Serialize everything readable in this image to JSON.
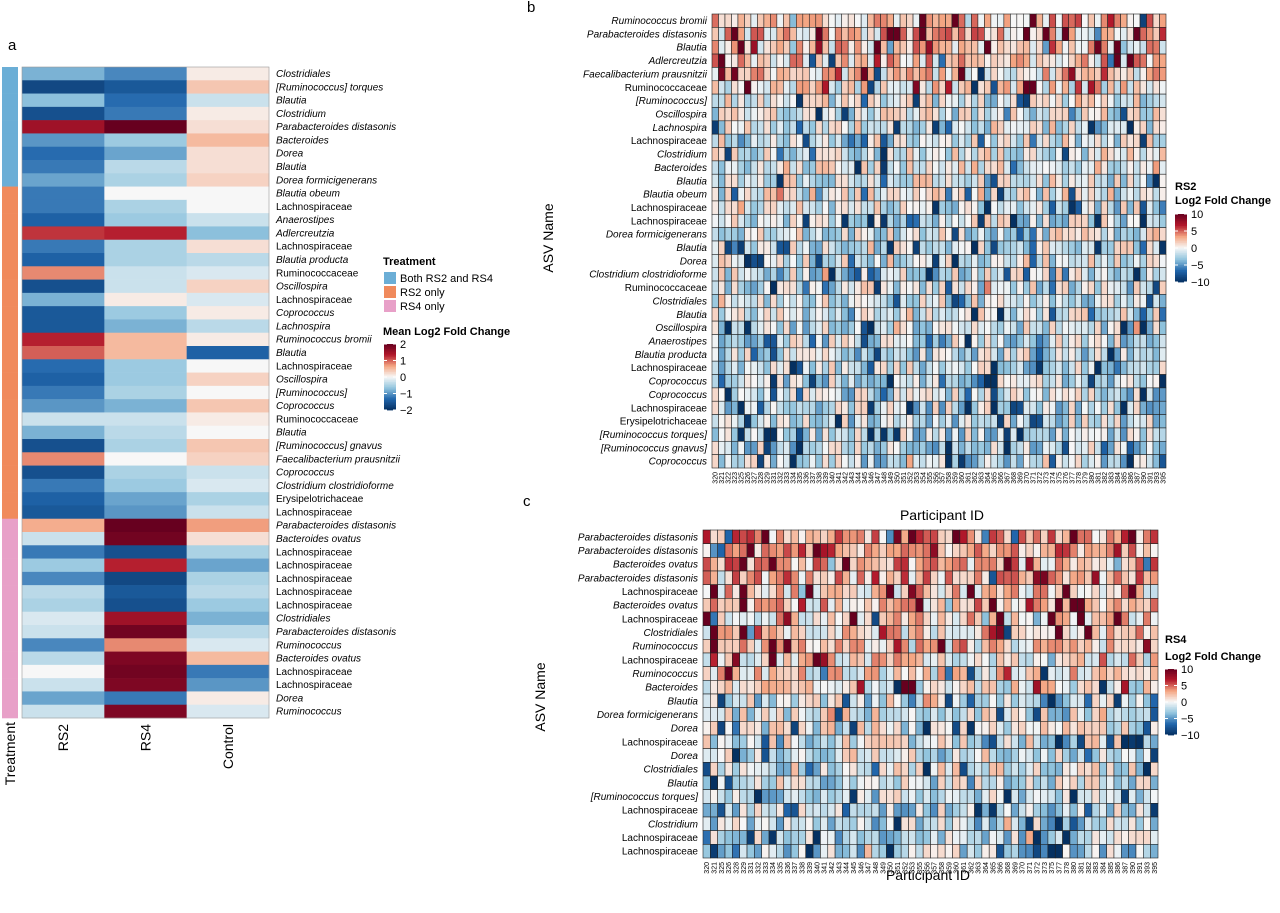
{
  "panel_labels": {
    "a": "a",
    "b": "b",
    "c": "c"
  },
  "colors": {
    "treatment_both": "#6baed6",
    "treatment_rs2": "#f08a5c",
    "treatment_rs4": "#e8a0c8",
    "scale_low": "#053061",
    "scale_mid": "#f7f7f7",
    "scale_high": "#67001f"
  },
  "chart_data": [
    {
      "type": "heatmap",
      "panel": "a",
      "columns": [
        "RS2",
        "RS4",
        "Control"
      ],
      "annotation_title": "Treatment",
      "legend": {
        "treatment_title": "Treatment",
        "treatment_levels": [
          "Both RS2 and RS4",
          "RS2 only",
          "RS4 only"
        ],
        "scale_title": "Mean Log2 Fold Change",
        "scale_ticks": [
          "2",
          "1",
          "0",
          "−1",
          "−2"
        ],
        "scale_range": [
          -2,
          2
        ]
      },
      "rows": [
        {
          "label": "Clostridiales",
          "italic": true,
          "group": 0,
          "values": [
            -0.8,
            -1.1,
            0.1
          ]
        },
        {
          "label": "[Ruminococcus] torques",
          "italic": true,
          "group": 0,
          "values": [
            -1.7,
            -1.5,
            0.4
          ]
        },
        {
          "label": "Blautia",
          "italic": true,
          "group": 0,
          "values": [
            -0.7,
            -1.3,
            -0.3
          ]
        },
        {
          "label": "Clostridium",
          "italic": true,
          "group": 0,
          "values": [
            -1.6,
            -1.2,
            0.1
          ]
        },
        {
          "label": "Parabacteroides distasonis",
          "italic": true,
          "group": 0,
          "values": [
            1.5,
            2.4,
            0.2
          ]
        },
        {
          "label": "Bacteroides",
          "italic": true,
          "group": 0,
          "values": [
            -1.0,
            -0.6,
            0.5
          ]
        },
        {
          "label": "Dorea",
          "italic": true,
          "group": 0,
          "values": [
            -1.3,
            -0.9,
            0.2
          ]
        },
        {
          "label": "Blautia",
          "italic": true,
          "group": 0,
          "values": [
            -1.2,
            -0.4,
            0.2
          ]
        },
        {
          "label": "Dorea formicigenerans",
          "italic": true,
          "group": 0,
          "values": [
            -0.9,
            -0.5,
            0.3
          ]
        },
        {
          "label": "Blautia obeum",
          "italic": true,
          "group": 1,
          "values": [
            -1.2,
            0.0,
            0.0
          ]
        },
        {
          "label": "Lachnospiraceae",
          "italic": false,
          "group": 1,
          "values": [
            -1.2,
            -0.5,
            0.0
          ]
        },
        {
          "label": "Anaerostipes",
          "italic": true,
          "group": 1,
          "values": [
            -1.4,
            -0.6,
            -0.3
          ]
        },
        {
          "label": "Adlercreutzia",
          "italic": true,
          "group": 1,
          "values": [
            1.2,
            1.3,
            -0.7
          ]
        },
        {
          "label": "Lachnospiraceae",
          "italic": false,
          "group": 1,
          "values": [
            -1.2,
            -0.5,
            0.2
          ]
        },
        {
          "label": "Blautia producta",
          "italic": true,
          "group": 1,
          "values": [
            -1.4,
            -0.5,
            -0.4
          ]
        },
        {
          "label": "Ruminococcaceae",
          "italic": false,
          "group": 1,
          "values": [
            0.8,
            -0.3,
            -0.2
          ]
        },
        {
          "label": "Oscillospira",
          "italic": true,
          "group": 1,
          "values": [
            -1.6,
            -0.3,
            0.3
          ]
        },
        {
          "label": "Lachnospiraceae",
          "italic": false,
          "group": 1,
          "values": [
            -0.8,
            0.1,
            -0.2
          ]
        },
        {
          "label": "Coprococcus",
          "italic": true,
          "group": 1,
          "values": [
            -1.5,
            -0.6,
            0.1
          ]
        },
        {
          "label": "Lachnospira",
          "italic": true,
          "group": 1,
          "values": [
            -1.5,
            -0.8,
            -0.4
          ]
        },
        {
          "label": "Ruminococcus bromii",
          "italic": true,
          "group": 1,
          "values": [
            1.3,
            0.5,
            0.1
          ]
        },
        {
          "label": "Blautia",
          "italic": true,
          "group": 1,
          "values": [
            1.0,
            0.5,
            -1.4
          ]
        },
        {
          "label": "Lachnospiraceae",
          "italic": false,
          "group": 1,
          "values": [
            -1.3,
            -0.6,
            0.0
          ]
        },
        {
          "label": "Oscillospira",
          "italic": true,
          "group": 1,
          "values": [
            -1.4,
            -0.6,
            0.3
          ]
        },
        {
          "label": "[Ruminococcus]",
          "italic": true,
          "group": 1,
          "values": [
            -1.2,
            -0.5,
            0.0
          ]
        },
        {
          "label": "Coprococcus",
          "italic": true,
          "group": 1,
          "values": [
            -1.0,
            -0.8,
            0.4
          ]
        },
        {
          "label": "Ruminococcaceae",
          "italic": false,
          "group": 1,
          "values": [
            -0.3,
            -0.3,
            0.1
          ]
        },
        {
          "label": "Blautia",
          "italic": true,
          "group": 1,
          "values": [
            -0.8,
            -0.4,
            0.0
          ]
        },
        {
          "label": "[Ruminococcus] gnavus",
          "italic": true,
          "group": 1,
          "values": [
            -1.6,
            -0.5,
            0.4
          ]
        },
        {
          "label": "Faecalibacterium prausnitzii",
          "italic": true,
          "group": 1,
          "values": [
            0.8,
            0.0,
            0.3
          ]
        },
        {
          "label": "Coprococcus",
          "italic": true,
          "group": 1,
          "values": [
            -1.6,
            -0.5,
            -0.3
          ]
        },
        {
          "label": "Clostridium clostridioforme",
          "italic": true,
          "group": 1,
          "values": [
            -1.2,
            -0.6,
            -0.2
          ]
        },
        {
          "label": "Erysipelotrichaceae",
          "italic": false,
          "group": 1,
          "values": [
            -1.4,
            -0.9,
            -0.5
          ]
        },
        {
          "label": "Lachnospiraceae",
          "italic": false,
          "group": 1,
          "values": [
            -1.5,
            -1.0,
            -0.3
          ]
        },
        {
          "label": "Parabacteroides distasonis",
          "italic": true,
          "group": 2,
          "values": [
            0.6,
            2.3,
            0.7
          ]
        },
        {
          "label": "Bacteroides ovatus",
          "italic": true,
          "group": 2,
          "values": [
            -0.3,
            1.9,
            0.2
          ]
        },
        {
          "label": "Lachnospiraceae",
          "italic": false,
          "group": 2,
          "values": [
            -1.2,
            -1.6,
            -0.5
          ]
        },
        {
          "label": "Lachnospiraceae",
          "italic": false,
          "group": 2,
          "values": [
            -0.6,
            1.3,
            -0.9
          ]
        },
        {
          "label": "Lachnospiraceae",
          "italic": false,
          "group": 2,
          "values": [
            -1.1,
            -1.7,
            -0.5
          ]
        },
        {
          "label": "Lachnospiraceae",
          "italic": false,
          "group": 2,
          "values": [
            -0.4,
            -1.5,
            -0.4
          ]
        },
        {
          "label": "Lachnospiraceae",
          "italic": false,
          "group": 2,
          "values": [
            -0.5,
            -1.6,
            -0.6
          ]
        },
        {
          "label": "Clostridiales",
          "italic": true,
          "group": 2,
          "values": [
            -0.2,
            1.5,
            -0.8
          ]
        },
        {
          "label": "Parabacteroides distasonis",
          "italic": true,
          "group": 2,
          "values": [
            -0.3,
            1.9,
            -0.4
          ]
        },
        {
          "label": "Ruminococcus",
          "italic": true,
          "group": 2,
          "values": [
            -1.1,
            0.8,
            -0.2
          ]
        },
        {
          "label": "Bacteroides ovatus",
          "italic": true,
          "group": 2,
          "values": [
            -0.4,
            1.8,
            0.5
          ]
        },
        {
          "label": "Lachnospiraceae",
          "italic": false,
          "group": 2,
          "values": [
            0.0,
            1.9,
            -1.2
          ]
        },
        {
          "label": "Lachnospiraceae",
          "italic": false,
          "group": 2,
          "values": [
            -0.3,
            1.8,
            -1.0
          ]
        },
        {
          "label": "Dorea",
          "italic": true,
          "group": 2,
          "values": [
            -0.9,
            -1.2,
            0.1
          ]
        },
        {
          "label": "Ruminococcus",
          "italic": true,
          "group": 2,
          "values": [
            -0.3,
            1.8,
            -0.2
          ]
        }
      ]
    },
    {
      "type": "heatmap",
      "panel": "b",
      "xlabel": "Participant ID",
      "ylabel": "ASV Name",
      "scale_title": [
        "RS2",
        "Log2 Fold Change"
      ],
      "scale_ticks": [
        "10",
        "5",
        "0",
        "−5",
        "−10"
      ],
      "scale_range": [
        -10,
        10
      ],
      "seed": 17,
      "participants": [
        "320",
        "321",
        "322",
        "323",
        "325",
        "326",
        "327",
        "328",
        "329",
        "331",
        "332",
        "333",
        "334",
        "335",
        "336",
        "337",
        "338",
        "339",
        "340",
        "341",
        "342",
        "343",
        "344",
        "345",
        "346",
        "347",
        "348",
        "349",
        "350",
        "351",
        "352",
        "353",
        "354",
        "355",
        "356",
        "357",
        "358",
        "359",
        "360",
        "361",
        "362",
        "363",
        "364",
        "365",
        "366",
        "367",
        "368",
        "369",
        "370",
        "371",
        "372",
        "373",
        "374",
        "375",
        "376",
        "377",
        "378",
        "379",
        "380",
        "381",
        "382",
        "383",
        "384",
        "385",
        "386",
        "387",
        "390",
        "391",
        "393",
        "395"
      ],
      "rows": [
        {
          "label": "Ruminococcus bromii",
          "italic": true
        },
        {
          "label": "Parabacteroides distasonis",
          "italic": true
        },
        {
          "label": "Blautia",
          "italic": true
        },
        {
          "label": "Adlercreutzia",
          "italic": true
        },
        {
          "label": "Faecalibacterium prausnitzii",
          "italic": true
        },
        {
          "label": "Ruminococcaceae",
          "italic": false
        },
        {
          "label": "[Ruminococcus]",
          "italic": true
        },
        {
          "label": "Oscillospira",
          "italic": true
        },
        {
          "label": "Lachnospira",
          "italic": true
        },
        {
          "label": "Lachnospiraceae",
          "italic": false
        },
        {
          "label": "Clostridium",
          "italic": true
        },
        {
          "label": "Bacteroides",
          "italic": true
        },
        {
          "label": "Blautia",
          "italic": true
        },
        {
          "label": "Blautia obeum",
          "italic": true
        },
        {
          "label": "Lachnospiraceae",
          "italic": false
        },
        {
          "label": "Lachnospiraceae",
          "italic": false
        },
        {
          "label": "Dorea formicigenerans",
          "italic": true
        },
        {
          "label": "Blautia",
          "italic": true
        },
        {
          "label": "Dorea",
          "italic": true
        },
        {
          "label": "Clostridium clostridioforme",
          "italic": true
        },
        {
          "label": "Ruminococcaceae",
          "italic": false
        },
        {
          "label": "Clostridiales",
          "italic": true
        },
        {
          "label": "Blautia",
          "italic": true
        },
        {
          "label": "Oscillospira",
          "italic": true
        },
        {
          "label": "Anaerostipes",
          "italic": true
        },
        {
          "label": "Blautia producta",
          "italic": true
        },
        {
          "label": "Lachnospiraceae",
          "italic": false
        },
        {
          "label": "Coprococcus",
          "italic": true
        },
        {
          "label": "Coprococcus",
          "italic": true
        },
        {
          "label": "Lachnospiraceae",
          "italic": false
        },
        {
          "label": "Erysipelotrichaceae",
          "italic": false
        },
        {
          "label": "[Ruminococcus torques]",
          "italic": true
        },
        {
          "label": "[Ruminococcus gnavus]",
          "italic": true
        },
        {
          "label": "Coprococcus",
          "italic": true
        }
      ],
      "row_bias": [
        0.4,
        0.35,
        0.3,
        0.3,
        0.2,
        0.1,
        -0.1,
        -0.15,
        -0.1,
        -0.15,
        -0.1,
        -0.05,
        -0.15,
        -0.1,
        -0.15,
        -0.2,
        -0.15,
        -0.15,
        -0.15,
        -0.2,
        -0.2,
        -0.15,
        -0.2,
        -0.2,
        -0.25,
        -0.25,
        -0.25,
        -0.3,
        -0.3,
        -0.3,
        -0.3,
        -0.3,
        -0.3,
        -0.3
      ]
    },
    {
      "type": "heatmap",
      "panel": "c",
      "xlabel": "Participant ID",
      "ylabel": "ASV Name",
      "scale_title": [
        "RS4",
        "Log2 Fold Change"
      ],
      "scale_ticks": [
        "10",
        "5",
        "0",
        "−5",
        "−10"
      ],
      "scale_range": [
        -10,
        10
      ],
      "seed": 41,
      "participants": [
        "320",
        "321",
        "325",
        "326",
        "328",
        "329",
        "331",
        "332",
        "333",
        "334",
        "335",
        "336",
        "337",
        "338",
        "339",
        "340",
        "341",
        "342",
        "343",
        "344",
        "345",
        "346",
        "347",
        "348",
        "349",
        "350",
        "351",
        "352",
        "353",
        "355",
        "356",
        "357",
        "358",
        "359",
        "360",
        "361",
        "362",
        "363",
        "364",
        "365",
        "366",
        "368",
        "369",
        "370",
        "371",
        "372",
        "373",
        "375",
        "377",
        "378",
        "380",
        "381",
        "382",
        "383",
        "384",
        "385",
        "386",
        "387",
        "390",
        "391",
        "393",
        "395"
      ],
      "rows": [
        {
          "label": "Parabacteroides distasonis",
          "italic": true
        },
        {
          "label": "Parabacteroides distasonis",
          "italic": true
        },
        {
          "label": "Bacteroides ovatus",
          "italic": true
        },
        {
          "label": "Parabacteroides distasonis",
          "italic": true
        },
        {
          "label": "Lachnospiraceae",
          "italic": false
        },
        {
          "label": "Bacteroides ovatus",
          "italic": true
        },
        {
          "label": "Lachnospiraceae",
          "italic": false
        },
        {
          "label": "Clostridiales",
          "italic": true
        },
        {
          "label": "Ruminococcus",
          "italic": true
        },
        {
          "label": "Lachnospiraceae",
          "italic": false
        },
        {
          "label": "Ruminococcus",
          "italic": true
        },
        {
          "label": "Bacteroides",
          "italic": true
        },
        {
          "label": "Blautia",
          "italic": true
        },
        {
          "label": "Dorea formicigenerans",
          "italic": true
        },
        {
          "label": "Dorea",
          "italic": true
        },
        {
          "label": "Lachnospiraceae",
          "italic": false
        },
        {
          "label": "Dorea",
          "italic": true
        },
        {
          "label": "Clostridiales",
          "italic": true
        },
        {
          "label": "Blautia",
          "italic": true
        },
        {
          "label": "[Ruminococcus torques]",
          "italic": true
        },
        {
          "label": "Lachnospiraceae",
          "italic": false
        },
        {
          "label": "Clostridium",
          "italic": true
        },
        {
          "label": "Lachnospiraceae",
          "italic": false
        },
        {
          "label": "Lachnospiraceae",
          "italic": false
        }
      ],
      "row_bias": [
        0.55,
        0.5,
        0.45,
        0.45,
        0.3,
        0.3,
        0.25,
        0.25,
        0.2,
        0.15,
        0.15,
        0.0,
        -0.05,
        -0.1,
        -0.1,
        -0.15,
        -0.15,
        -0.15,
        -0.2,
        -0.3,
        -0.3,
        -0.35,
        -0.35,
        -0.35
      ]
    }
  ]
}
